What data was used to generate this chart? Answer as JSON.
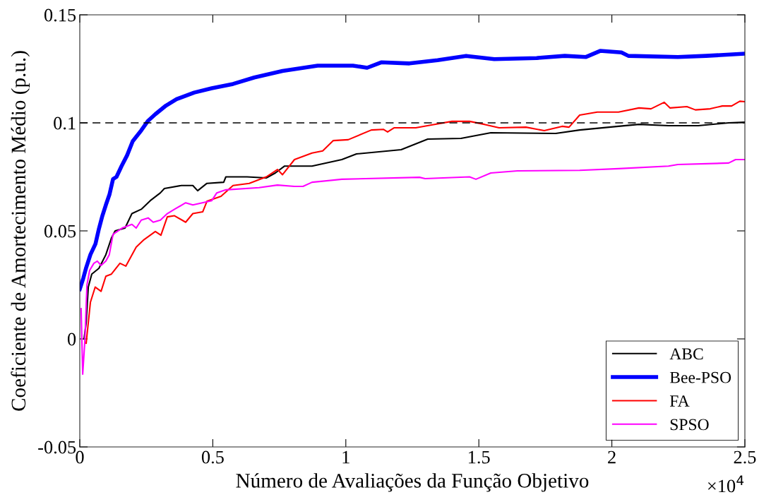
{
  "chart_data": {
    "type": "line",
    "xlabel": "Número de Avaliações da Função Objetivo",
    "ylabel": "Coeficiente de Amortecimento Médio (p.u.)",
    "xlim": [
      0,
      2.5
    ],
    "xticks": [
      0,
      0.5,
      1,
      1.5,
      2,
      2.5
    ],
    "ylim": [
      -0.05,
      0.15
    ],
    "yticks": [
      {
        "value": -0.05,
        "label": "-0.05"
      },
      0,
      0.05,
      0.1,
      0.15
    ],
    "annotations": [
      "×10$^{4}$"
    ],
    "ref_lines": [
      {
        "axis": "y",
        "value": 0.1,
        "color": "#000000",
        "line_style": "dashed"
      }
    ],
    "grid": false,
    "legend": "bottom right",
    "line_style": "solid",
    "marker": "none",
    "series": [
      {
        "name": "ABC",
        "color": "#000000",
        "x": [
          0.016,
          0.024,
          0.032,
          0.045,
          0.072,
          0.098,
          0.119,
          0.133,
          0.17,
          0.196,
          0.231,
          0.265,
          0.303,
          0.318,
          0.382,
          0.425,
          0.443,
          0.478,
          0.541,
          0.549,
          0.629,
          0.701,
          0.735,
          0.77,
          0.873,
          0.985,
          1.04,
          1.208,
          1.308,
          1.433,
          1.545,
          1.789,
          1.879,
          1.99,
          2.102,
          2.213,
          2.325,
          2.439,
          2.5
        ],
        "values": [
          0.0,
          0.0075,
          0.024,
          0.03,
          0.0327,
          0.039,
          0.0467,
          0.05,
          0.0513,
          0.058,
          0.06,
          0.064,
          0.0676,
          0.0696,
          0.071,
          0.071,
          0.0686,
          0.072,
          0.0725,
          0.075,
          0.075,
          0.0745,
          0.0768,
          0.08,
          0.08,
          0.083,
          0.0856,
          0.0876,
          0.0925,
          0.0928,
          0.0954,
          0.0951,
          0.0967,
          0.098,
          0.0993,
          0.0987,
          0.0987,
          0.1,
          0.1003
        ]
      },
      {
        "name": "Bee-PSO",
        "color": "#0000ff",
        "x": [
          0,
          0.013,
          0.024,
          0.04,
          0.059,
          0.072,
          0.085,
          0.098,
          0.112,
          0.125,
          0.138,
          0.157,
          0.178,
          0.199,
          0.231,
          0.257,
          0.284,
          0.324,
          0.364,
          0.43,
          0.496,
          0.576,
          0.656,
          0.762,
          0.894,
          1.027,
          1.08,
          1.133,
          1.239,
          1.345,
          1.452,
          1.558,
          1.717,
          1.823,
          1.903,
          1.956,
          2.036,
          2.062,
          2.248,
          2.354,
          2.5
        ],
        "values": [
          0.023,
          0.028,
          0.033,
          0.039,
          0.044,
          0.051,
          0.057,
          0.062,
          0.067,
          0.074,
          0.075,
          0.08,
          0.085,
          0.0915,
          0.0965,
          0.101,
          0.104,
          0.108,
          0.111,
          0.114,
          0.116,
          0.118,
          0.121,
          0.124,
          0.1265,
          0.1265,
          0.1255,
          0.128,
          0.1275,
          0.129,
          0.131,
          0.1295,
          0.13,
          0.131,
          0.1305,
          0.1333,
          0.1326,
          0.131,
          0.1305,
          0.131,
          0.132
        ]
      },
      {
        "name": "FA",
        "color": "#ff0000",
        "x": [
          0.024,
          0.04,
          0.058,
          0.08,
          0.098,
          0.119,
          0.151,
          0.173,
          0.212,
          0.239,
          0.284,
          0.305,
          0.329,
          0.356,
          0.398,
          0.425,
          0.462,
          0.478,
          0.531,
          0.576,
          0.637,
          0.701,
          0.743,
          0.762,
          0.807,
          0.873,
          0.913,
          0.953,
          1.009,
          1.096,
          1.141,
          1.157,
          1.181,
          1.263,
          1.322,
          1.399,
          1.465,
          1.521,
          1.576,
          1.677,
          1.746,
          1.813,
          1.839,
          1.879,
          1.945,
          2.025,
          2.102,
          2.147,
          2.197,
          2.219,
          2.282,
          2.314,
          2.37,
          2.415,
          2.45,
          2.481,
          2.5
        ],
        "values": [
          -0.002,
          0.017,
          0.024,
          0.022,
          0.029,
          0.03,
          0.035,
          0.0337,
          0.0425,
          0.0457,
          0.0497,
          0.048,
          0.0565,
          0.057,
          0.054,
          0.058,
          0.0588,
          0.0637,
          0.066,
          0.071,
          0.072,
          0.075,
          0.0784,
          0.076,
          0.083,
          0.086,
          0.087,
          0.0918,
          0.0922,
          0.0967,
          0.097,
          0.0958,
          0.0977,
          0.0977,
          0.099,
          0.1007,
          0.1007,
          0.0993,
          0.0977,
          0.098,
          0.0964,
          0.0984,
          0.098,
          0.1036,
          0.105,
          0.105,
          0.1069,
          0.1065,
          0.1095,
          0.1069,
          0.1075,
          0.106,
          0.1065,
          0.1078,
          0.1078,
          0.11,
          0.1098
        ]
      },
      {
        "name": "SPSO",
        "color": "#ff00ff",
        "x": [
          0.005,
          0.011,
          0.019,
          0.027,
          0.037,
          0.053,
          0.066,
          0.08,
          0.098,
          0.111,
          0.125,
          0.159,
          0.196,
          0.212,
          0.231,
          0.257,
          0.276,
          0.303,
          0.329,
          0.356,
          0.398,
          0.425,
          0.496,
          0.515,
          0.549,
          0.674,
          0.743,
          0.807,
          0.839,
          0.873,
          0.985,
          1.277,
          1.298,
          1.465,
          1.489,
          1.545,
          1.645,
          1.879,
          2.025,
          2.213,
          2.248,
          2.439,
          2.465,
          2.5
        ],
        "values": [
          0.014,
          -0.0163,
          -0.001,
          0.025,
          0.0317,
          0.035,
          0.036,
          0.034,
          0.036,
          0.039,
          0.0484,
          0.0513,
          0.053,
          0.0513,
          0.055,
          0.056,
          0.054,
          0.055,
          0.058,
          0.06,
          0.063,
          0.062,
          0.064,
          0.0676,
          0.069,
          0.07,
          0.0712,
          0.0706,
          0.0706,
          0.0725,
          0.0739,
          0.0748,
          0.0742,
          0.075,
          0.0739,
          0.0768,
          0.0778,
          0.078,
          0.0788,
          0.08,
          0.0807,
          0.0814,
          0.083,
          0.083
        ]
      }
    ]
  }
}
